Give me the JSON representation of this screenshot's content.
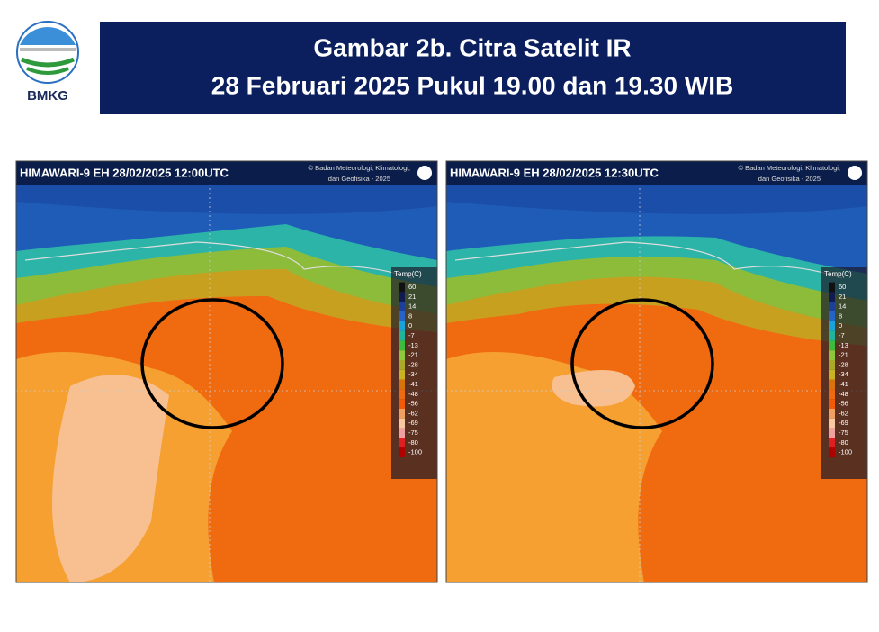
{
  "logo": {
    "text": "BMKG"
  },
  "header": {
    "title": [
      "Gambar 2b. Citra Satelit IR",
      "28 Februari 2025 Pukul 19.00 dan 19.30 WIB"
    ]
  },
  "panels": [
    {
      "header": "HIMAWARI-9 EH 28/02/2025 12:00UTC",
      "copyright": [
        "© Badan Meteorologi, Klimatologi,",
        "dan Geofisika -  2025"
      ]
    },
    {
      "header": "HIMAWARI-9 EH 28/02/2025 12:30UTC",
      "copyright": [
        "© Badan Meteorologi, Klimatologi,",
        "dan Geofisika -  2025"
      ]
    }
  ],
  "legend": {
    "title": "Temp(C)",
    "labels": [
      "60",
      "21",
      "14",
      "8",
      "0",
      "-7",
      "-13",
      "-21",
      "-28",
      "-34",
      "-41",
      "-48",
      "-56",
      "-62",
      "-69",
      "-75",
      "-80",
      "-100"
    ]
  }
}
